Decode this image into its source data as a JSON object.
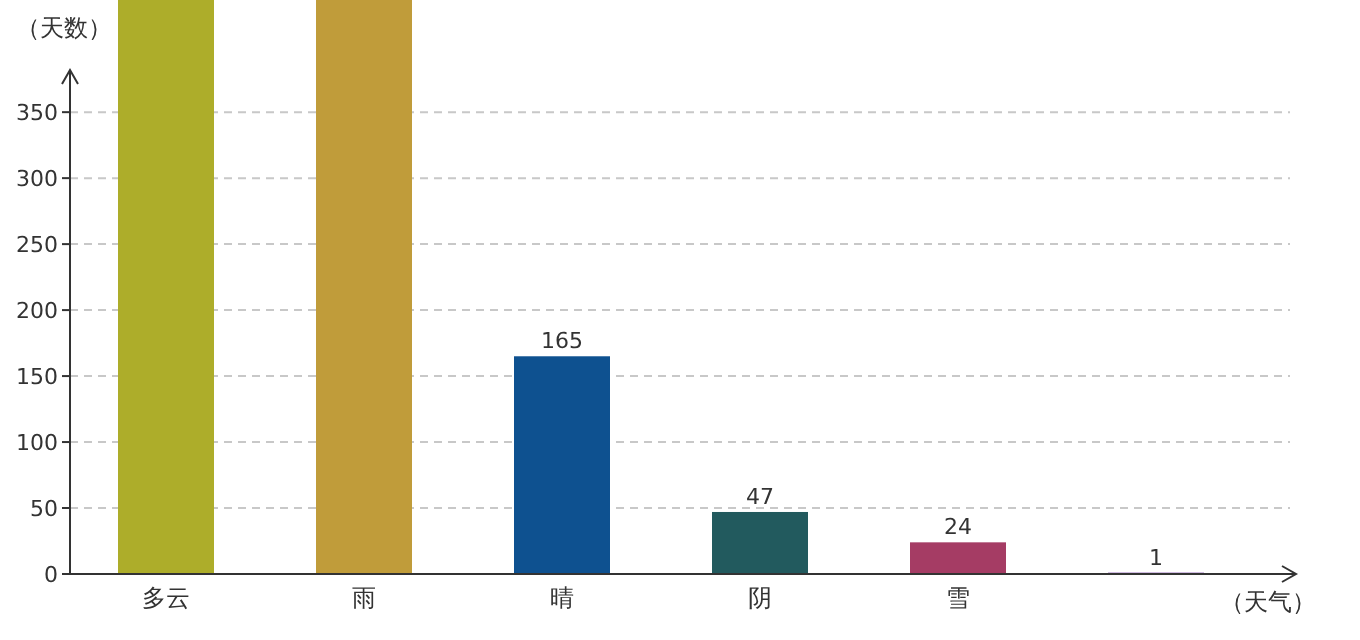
{
  "chart_data": {
    "type": "bar",
    "xlabel": "（天气）",
    "ylabel": "（天数）",
    "categories": [
      "多云",
      "雨",
      "晴",
      "阴",
      "雪",
      null
    ],
    "values": [
      435,
      435,
      165,
      47,
      24,
      1
    ],
    "value_labels": [
      null,
      null,
      "165",
      "47",
      "24",
      "1"
    ],
    "colors": [
      "#adad2a",
      "#c09c3a",
      "#0e5190",
      "#225a5e",
      "#a53c64",
      "#6a2a9e"
    ],
    "ylim": [
      0,
      435
    ],
    "yticks": [
      0,
      50,
      100,
      150,
      200,
      250,
      300,
      350
    ],
    "grid": "y"
  }
}
